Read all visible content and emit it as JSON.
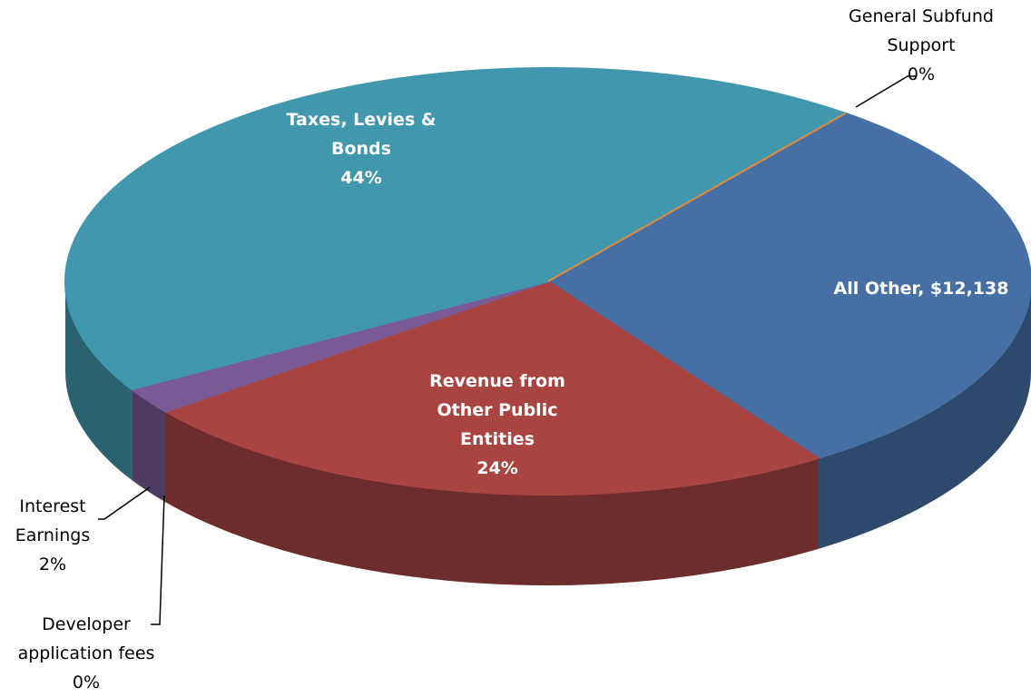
{
  "chart_data": {
    "type": "pie3d",
    "categories": [
      "All Other, $12,138",
      "Revenue from Other Public Entities",
      "Developer application fees",
      "Interest Earnings",
      "Taxes, Levies & Bonds",
      "General Subfund Support"
    ],
    "values": [
      30,
      24,
      0,
      2,
      44,
      0
    ],
    "value_labels": [
      null,
      "24%",
      "0%",
      "2%",
      "44%",
      "0%"
    ],
    "colors": [
      "#4670a4",
      "#a84543",
      "#9a7fb8",
      "#7a5a96",
      "#4197ad",
      "#e08a3c"
    ]
  }
}
